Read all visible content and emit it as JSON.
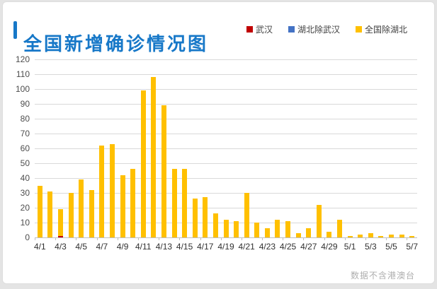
{
  "header": {
    "title": "全国新增确诊情况图",
    "title_color": "#1778c8",
    "legend": [
      {
        "label": "武汉",
        "color": "#c00000"
      },
      {
        "label": "湖北除武汉",
        "color": "#4472c4"
      },
      {
        "label": "全国除湖北",
        "color": "#ffc000"
      }
    ]
  },
  "footer": {
    "note": "数据不含港澳台"
  },
  "chart_data": {
    "type": "bar",
    "stacked": true,
    "title": "全国新增确诊情况图",
    "xlabel": "",
    "ylabel": "",
    "ylim": [
      0,
      120
    ],
    "ytick_step": 10,
    "grid": true,
    "legend_position": "top-right",
    "x_label_every": 2,
    "categories": [
      "4/1",
      "4/2",
      "4/3",
      "4/4",
      "4/5",
      "4/6",
      "4/7",
      "4/8",
      "4/9",
      "4/10",
      "4/11",
      "4/12",
      "4/13",
      "4/14",
      "4/15",
      "4/16",
      "4/17",
      "4/18",
      "4/19",
      "4/20",
      "4/21",
      "4/22",
      "4/23",
      "4/24",
      "4/25",
      "4/26",
      "4/27",
      "4/28",
      "4/29",
      "4/30",
      "5/1",
      "5/2",
      "5/3",
      "5/4",
      "5/5",
      "5/6",
      "5/7"
    ],
    "series": [
      {
        "name": "武汉",
        "color": "#c00000",
        "values": [
          0,
          0,
          1,
          0,
          0,
          0,
          0,
          0,
          0,
          0,
          0,
          0,
          0,
          0,
          0,
          0,
          0,
          0,
          0,
          0,
          0,
          0,
          0,
          0,
          0,
          0,
          0,
          0,
          0,
          0,
          0,
          0,
          0,
          0,
          0,
          0,
          0
        ]
      },
      {
        "name": "湖北除武汉",
        "color": "#4472c4",
        "values": [
          0,
          0,
          0,
          0,
          0,
          0,
          0,
          0,
          0,
          0,
          0,
          0,
          0,
          0,
          0,
          0,
          0,
          0,
          0,
          0,
          0,
          0,
          0,
          0,
          0,
          0,
          0,
          0,
          0,
          0,
          0,
          0,
          0,
          0,
          0,
          0,
          0
        ]
      },
      {
        "name": "全国除湖北",
        "color": "#ffc000",
        "values": [
          35,
          31,
          18,
          30,
          39,
          32,
          62,
          63,
          42,
          46,
          99,
          108,
          89,
          46,
          46,
          26,
          27,
          16,
          12,
          11,
          30,
          10,
          6,
          12,
          11,
          3,
          6,
          22,
          4,
          12,
          1,
          2,
          3,
          1,
          2,
          2,
          1
        ]
      }
    ]
  }
}
